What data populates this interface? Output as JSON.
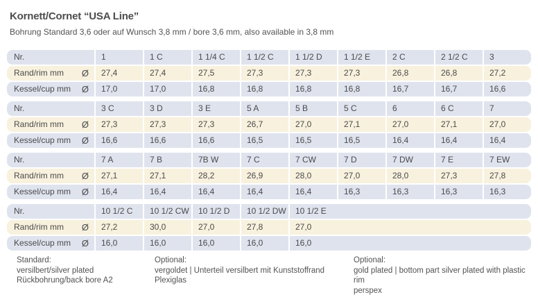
{
  "header": {
    "title": "Kornett/Cornet “USA Line”",
    "subtitle": "Bohrung Standard 3,6 oder auf Wunsch 3,8 mm / bore 3,6 mm, also available in 3,8 mm"
  },
  "table": {
    "row_labels": {
      "nr": "Nr.",
      "rim": "Rand/rim mm",
      "cup": "Kessel/cup mm",
      "diameter_symbol": "Ø"
    },
    "blocks": [
      {
        "nr": [
          "1",
          "1 C",
          "1 1/4 C",
          "1 1/2 C",
          "1 1/2 D",
          "1 1/2 E",
          "2 C",
          "2 1/2 C",
          "3"
        ],
        "rim": [
          "27,4",
          "27,4",
          "27,5",
          "27,3",
          "27,3",
          "27,3",
          "26,8",
          "26,8",
          "27,2"
        ],
        "cup": [
          "17,0",
          "17,0",
          "16,8",
          "16,8",
          "16,8",
          "16,8",
          "16,7",
          "16,7",
          "16,6"
        ]
      },
      {
        "nr": [
          "3 C",
          "3 D",
          "3 E",
          "5 A",
          "5 B",
          "5 C",
          "6",
          "6 C",
          "7"
        ],
        "rim": [
          "27,3",
          "27,3",
          "27,3",
          "26,7",
          "27,0",
          "27,1",
          "27,0",
          "27,1",
          "27,0"
        ],
        "cup": [
          "16,6",
          "16,6",
          "16,6",
          "16,5",
          "16,5",
          "16,5",
          "16,4",
          "16,4",
          "16,4"
        ]
      },
      {
        "nr": [
          "7 A",
          "7 B",
          "7B W",
          "7 C",
          "7 CW",
          "7 D",
          "7 DW",
          "7 E",
          "7 EW"
        ],
        "rim": [
          "27,1",
          "27,1",
          "28,2",
          "26,9",
          "28,0",
          "27,0",
          "28,0",
          "27,3",
          "27,8"
        ],
        "cup": [
          "16,4",
          "16,4",
          "16,4",
          "16,4",
          "16,4",
          "16,3",
          "16,3",
          "16,3",
          "16,3"
        ]
      },
      {
        "nr": [
          "10 1/2 C",
          "10 1/2 CW",
          "10 1/2 D",
          "10 1/2 DW",
          "10 1/2 E"
        ],
        "rim": [
          "27,2",
          "30,0",
          "27,0",
          "27,8",
          "27,0"
        ],
        "cup": [
          "16,0",
          "16,0",
          "16,0",
          "16,0",
          "16,0"
        ]
      }
    ]
  },
  "footer": {
    "columns": [
      {
        "heading": "Standard:",
        "lines": [
          "versilbert/silver plated",
          "Rückbohrung/back bore A2"
        ]
      },
      {
        "heading": "Optional:",
        "lines": [
          "vergoldet | Unterteil versilbert mit Kunststoffrand",
          "Plexiglas"
        ]
      },
      {
        "heading": "Optional:",
        "lines": [
          "gold plated | bottom part silver plated with plastic rim",
          "perspex"
        ]
      }
    ]
  },
  "colors": {
    "row_gray": "#dfe3ed",
    "row_cream": "#f8f1dd",
    "text": "#4a4a4c"
  }
}
